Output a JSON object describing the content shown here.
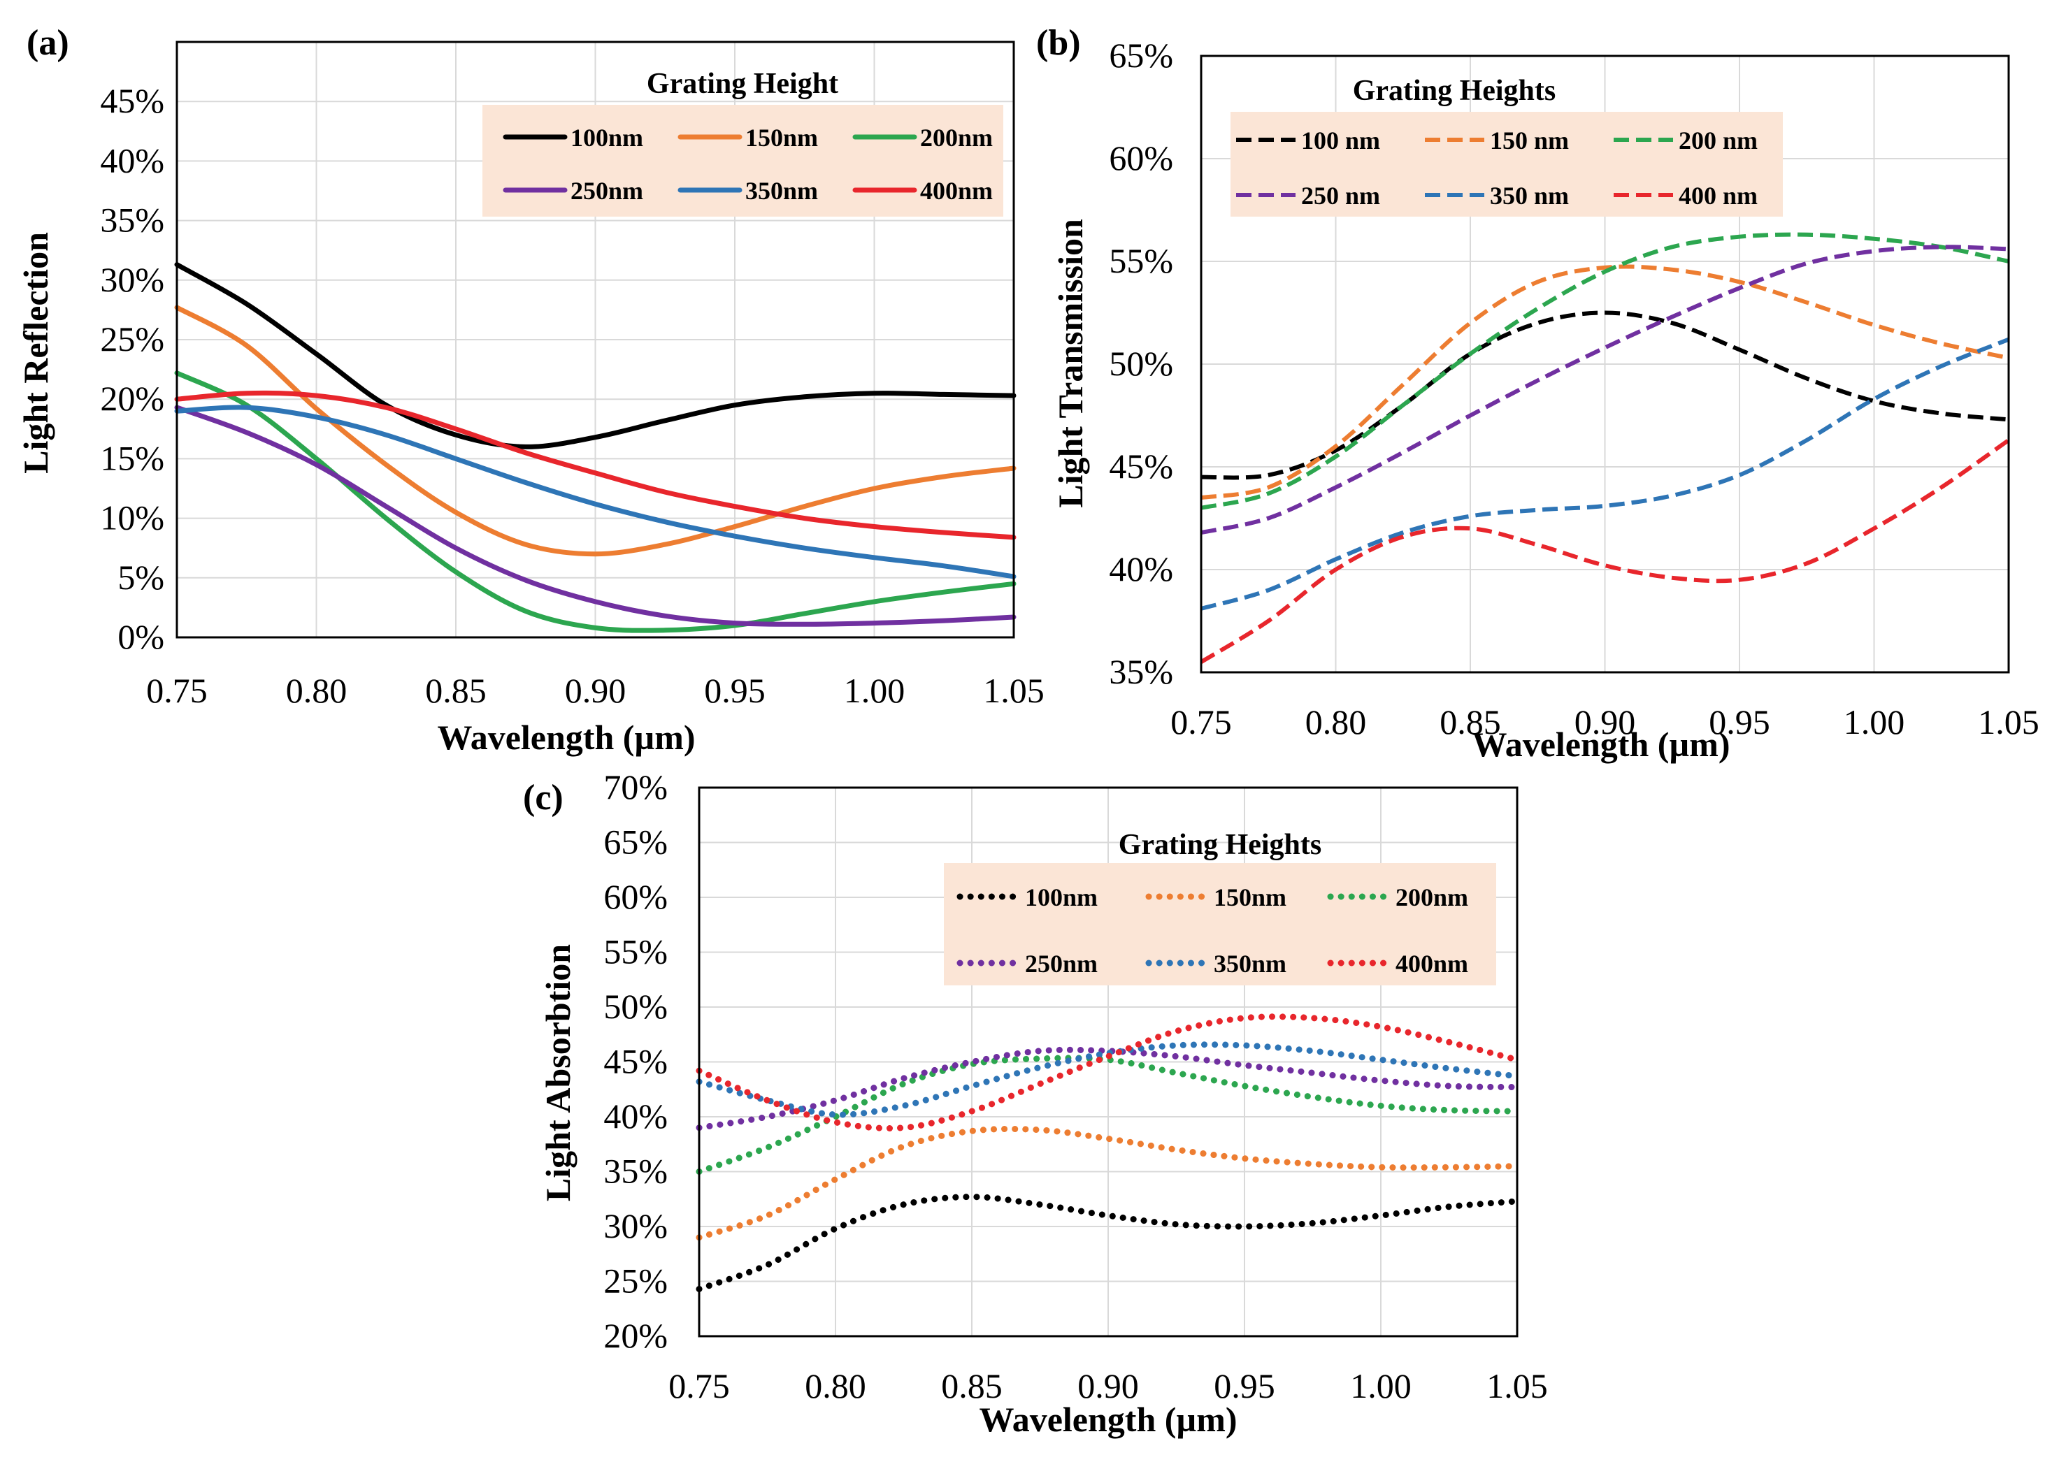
{
  "colors": {
    "black": "#000000",
    "orange": "#ed7d31",
    "green": "#2ca64f",
    "purple": "#7030a0",
    "blue": "#2e75b6",
    "red": "#e8262c",
    "legend_bg": "#fbe5d6",
    "grid": "#d9d9d9"
  },
  "chart_data": [
    {
      "panel": "(a)",
      "type": "line",
      "style": "solid",
      "xlabel": "Wavelength (µm)",
      "ylabel": "Light Reflection",
      "xlim": [
        0.75,
        1.05
      ],
      "ylim": [
        0,
        0.5
      ],
      "xticks": [
        0.75,
        0.8,
        0.85,
        0.9,
        0.95,
        1.0,
        1.05
      ],
      "xtick_labels": [
        "0.75",
        "0.80",
        "0.85",
        "0.90",
        "0.95",
        "1.00",
        "1.05"
      ],
      "yticks": [
        0,
        0.05,
        0.1,
        0.15,
        0.2,
        0.25,
        0.3,
        0.35,
        0.4,
        0.45
      ],
      "ytick_labels": [
        "0%",
        "5%",
        "10%",
        "15%",
        "20%",
        "25%",
        "30%",
        "35%",
        "40%",
        "45%"
      ],
      "legend_title": "Grating Height",
      "legend_position": "top-right",
      "x": [
        0.75,
        0.775,
        0.8,
        0.825,
        0.85,
        0.875,
        0.9,
        0.925,
        0.95,
        0.975,
        1.0,
        1.025,
        1.05
      ],
      "series": [
        {
          "name": "100nm",
          "color": "black",
          "values": [
            0.313,
            0.28,
            0.238,
            0.195,
            0.17,
            0.16,
            0.168,
            0.182,
            0.195,
            0.202,
            0.205,
            0.204,
            0.203
          ]
        },
        {
          "name": "150nm",
          "color": "orange",
          "values": [
            0.277,
            0.245,
            0.192,
            0.145,
            0.105,
            0.078,
            0.07,
            0.078,
            0.093,
            0.11,
            0.125,
            0.135,
            0.142
          ]
        },
        {
          "name": "200nm",
          "color": "green",
          "values": [
            0.222,
            0.195,
            0.15,
            0.1,
            0.055,
            0.022,
            0.008,
            0.006,
            0.01,
            0.02,
            0.03,
            0.038,
            0.045
          ]
        },
        {
          "name": "250nm",
          "color": "purple",
          "values": [
            0.193,
            0.172,
            0.145,
            0.11,
            0.075,
            0.048,
            0.03,
            0.018,
            0.012,
            0.011,
            0.012,
            0.014,
            0.017
          ]
        },
        {
          "name": "350nm",
          "color": "blue",
          "values": [
            0.19,
            0.193,
            0.185,
            0.17,
            0.15,
            0.13,
            0.112,
            0.097,
            0.085,
            0.075,
            0.067,
            0.06,
            0.051
          ]
        },
        {
          "name": "400nm",
          "color": "red",
          "values": [
            0.2,
            0.205,
            0.203,
            0.193,
            0.175,
            0.155,
            0.138,
            0.122,
            0.11,
            0.1,
            0.093,
            0.088,
            0.084
          ]
        }
      ]
    },
    {
      "panel": "(b)",
      "type": "line",
      "style": "dashed",
      "xlabel": "Wavelength (µm)",
      "ylabel": "Light Transmission",
      "xlim": [
        0.75,
        1.05
      ],
      "ylim": [
        0.35,
        0.65
      ],
      "xticks": [
        0.75,
        0.8,
        0.85,
        0.9,
        0.95,
        1.0,
        1.05
      ],
      "xtick_labels": [
        "0.75",
        "0.80",
        "0.85",
        "0.90",
        "0.95",
        "1.00",
        "1.05"
      ],
      "yticks": [
        0.35,
        0.4,
        0.45,
        0.5,
        0.55,
        0.6,
        0.65
      ],
      "ytick_labels": [
        "35%",
        "40%",
        "45%",
        "50%",
        "55%",
        "60%",
        "65%"
      ],
      "legend_title": "Grating Heights",
      "legend_position": "top-left",
      "x": [
        0.75,
        0.775,
        0.8,
        0.825,
        0.85,
        0.875,
        0.9,
        0.925,
        0.95,
        0.975,
        1.0,
        1.025,
        1.05
      ],
      "series": [
        {
          "name": "100 nm",
          "color": "black",
          "values": [
            0.445,
            0.446,
            0.458,
            0.48,
            0.505,
            0.52,
            0.525,
            0.52,
            0.507,
            0.493,
            0.482,
            0.476,
            0.473
          ]
        },
        {
          "name": "150 nm",
          "color": "orange",
          "values": [
            0.435,
            0.44,
            0.46,
            0.49,
            0.52,
            0.54,
            0.547,
            0.546,
            0.54,
            0.53,
            0.519,
            0.51,
            0.503
          ]
        },
        {
          "name": "200 nm",
          "color": "green",
          "values": [
            0.43,
            0.437,
            0.455,
            0.48,
            0.505,
            0.527,
            0.545,
            0.557,
            0.562,
            0.563,
            0.561,
            0.557,
            0.55
          ]
        },
        {
          "name": "250 nm",
          "color": "purple",
          "values": [
            0.418,
            0.425,
            0.44,
            0.457,
            0.475,
            0.492,
            0.508,
            0.523,
            0.537,
            0.549,
            0.555,
            0.557,
            0.556
          ]
        },
        {
          "name": "350 nm",
          "color": "blue",
          "values": [
            0.381,
            0.39,
            0.405,
            0.418,
            0.426,
            0.429,
            0.431,
            0.436,
            0.446,
            0.463,
            0.483,
            0.499,
            0.512
          ]
        },
        {
          "name": "400 nm",
          "color": "red",
          "values": [
            0.355,
            0.375,
            0.4,
            0.416,
            0.42,
            0.412,
            0.402,
            0.396,
            0.395,
            0.403,
            0.42,
            0.44,
            0.463
          ]
        }
      ]
    },
    {
      "panel": "(c)",
      "type": "line",
      "style": "dotted",
      "xlabel": "Wavelength (µm)",
      "ylabel": "Light Absorbtion",
      "xlim": [
        0.75,
        1.05
      ],
      "ylim": [
        0.2,
        0.7
      ],
      "xticks": [
        0.75,
        0.8,
        0.85,
        0.9,
        0.95,
        1.0,
        1.05
      ],
      "xtick_labels": [
        "0.75",
        "0.80",
        "0.85",
        "0.90",
        "0.95",
        "1.00",
        "1.05"
      ],
      "yticks": [
        0.2,
        0.25,
        0.3,
        0.35,
        0.4,
        0.45,
        0.5,
        0.55,
        0.6,
        0.65,
        0.7
      ],
      "ytick_labels": [
        "20%",
        "25%",
        "30%",
        "35%",
        "40%",
        "45%",
        "50%",
        "55%",
        "60%",
        "65%",
        "70%"
      ],
      "legend_title": "Grating Heights",
      "legend_position": "top-right",
      "x": [
        0.75,
        0.775,
        0.8,
        0.825,
        0.85,
        0.875,
        0.9,
        0.925,
        0.95,
        0.975,
        1.0,
        1.025,
        1.05
      ],
      "series": [
        {
          "name": "100nm",
          "color": "black",
          "values": [
            0.243,
            0.265,
            0.298,
            0.32,
            0.327,
            0.32,
            0.31,
            0.302,
            0.3,
            0.303,
            0.31,
            0.318,
            0.323
          ]
        },
        {
          "name": "150nm",
          "color": "orange",
          "values": [
            0.29,
            0.31,
            0.343,
            0.373,
            0.387,
            0.388,
            0.38,
            0.37,
            0.362,
            0.357,
            0.354,
            0.354,
            0.355
          ]
        },
        {
          "name": "200nm",
          "color": "green",
          "values": [
            0.35,
            0.372,
            0.4,
            0.43,
            0.448,
            0.453,
            0.452,
            0.44,
            0.428,
            0.418,
            0.41,
            0.406,
            0.405
          ]
        },
        {
          "name": "250nm",
          "color": "purple",
          "values": [
            0.39,
            0.4,
            0.415,
            0.435,
            0.45,
            0.46,
            0.46,
            0.455,
            0.447,
            0.44,
            0.433,
            0.428,
            0.427
          ]
        },
        {
          "name": "350nm",
          "color": "blue",
          "values": [
            0.432,
            0.415,
            0.402,
            0.41,
            0.428,
            0.445,
            0.458,
            0.465,
            0.465,
            0.46,
            0.452,
            0.444,
            0.437
          ]
        },
        {
          "name": "400nm",
          "color": "red",
          "values": [
            0.442,
            0.415,
            0.395,
            0.39,
            0.405,
            0.43,
            0.455,
            0.478,
            0.49,
            0.49,
            0.482,
            0.468,
            0.452
          ]
        }
      ]
    }
  ]
}
